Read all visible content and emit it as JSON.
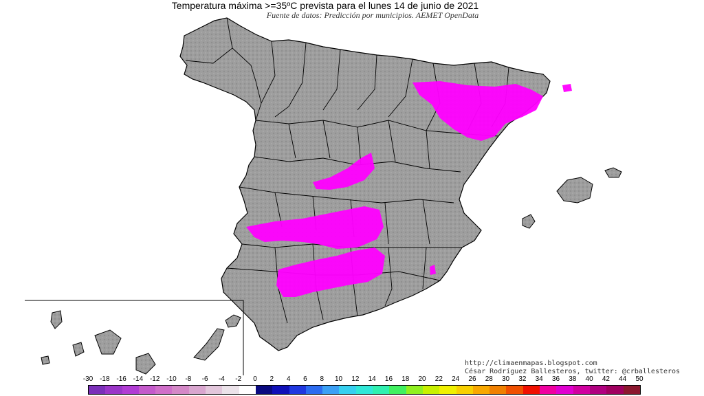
{
  "title": "Temperatura máxima >=35ºC prevista para el lunes 14 de junio de 2021",
  "source": "Fuente de datos: Predicción por municipios. AEMET OpenData",
  "credits": {
    "line1": "http://climaenmapas.blogspot.com",
    "line2": "César Rodríguez Ballesteros, twitter: @crballesteros"
  },
  "legend": {
    "ticks": [
      "-30",
      "-18",
      "-16",
      "-14",
      "-12",
      "-10",
      "-8",
      "-6",
      "-4",
      "-2",
      "0",
      "2",
      "4",
      "6",
      "8",
      "10",
      "12",
      "14",
      "16",
      "18",
      "20",
      "22",
      "24",
      "26",
      "28",
      "30",
      "32",
      "34",
      "36",
      "38",
      "40",
      "42",
      "44",
      "50"
    ],
    "colors": [
      "#7b2fb9",
      "#9a35c8",
      "#b13cd4",
      "#c45acb",
      "#d06fc9",
      "#d488c7",
      "#d9a6cf",
      "#e3c7dc",
      "#ece3ea",
      "#ffffff",
      "#0a0a80",
      "#1010b8",
      "#2038e0",
      "#2c6cf0",
      "#3ba0f5",
      "#36d0f0",
      "#30e8d8",
      "#30f0b0",
      "#40f060",
      "#90f020",
      "#c8f000",
      "#f0f000",
      "#f8d000",
      "#f8a800",
      "#f08000",
      "#f05000",
      "#f01000",
      "#f000a0",
      "#e000d0",
      "#d000a0",
      "#b00080",
      "#a00060",
      "#8c1830"
    ]
  },
  "map": {
    "highlight_color": "#ff00ff",
    "land_color": "#9e9e9e",
    "sea_color": "#ffffff"
  }
}
